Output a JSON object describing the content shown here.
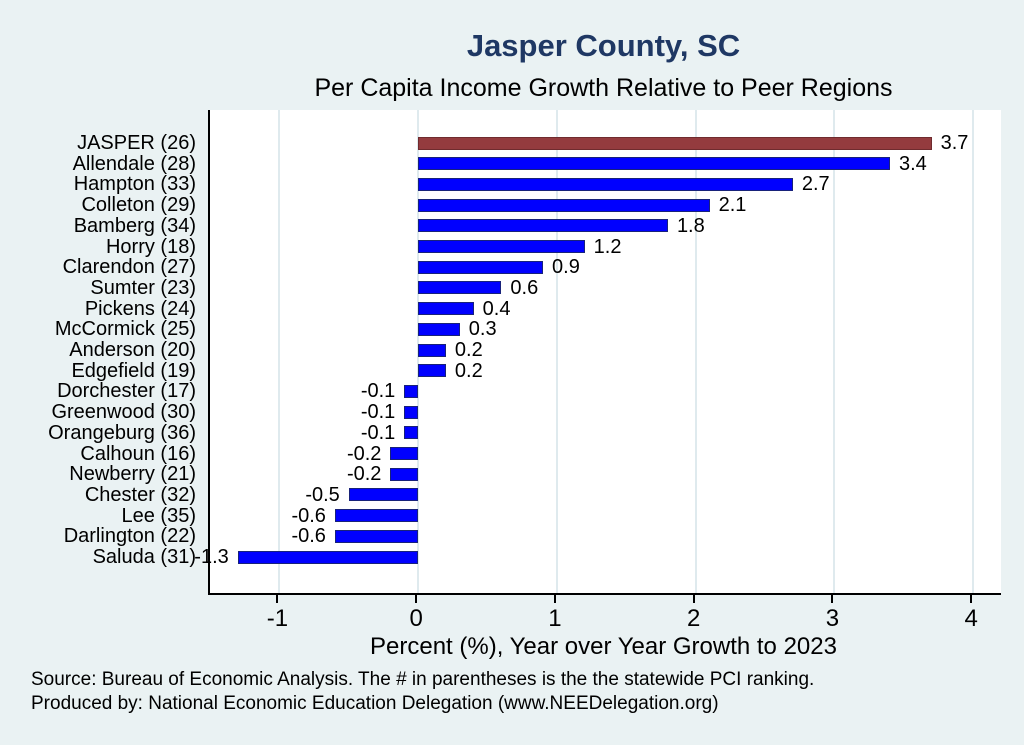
{
  "chart_data": {
    "type": "bar",
    "orientation": "horizontal",
    "title": "Jasper County, SC",
    "subtitle": "Per Capita Income Growth Relative to Peer Regions",
    "categories": [
      "JASPER (26)",
      "Allendale (28)",
      "Hampton (33)",
      "Colleton (29)",
      "Bamberg (34)",
      "Horry (18)",
      "Clarendon (27)",
      "Sumter (23)",
      "Pickens (24)",
      "McCormick (25)",
      "Anderson (20)",
      "Edgefield (19)",
      "Dorchester (17)",
      "Greenwood (30)",
      "Orangeburg (36)",
      "Calhoun (16)",
      "Newberry (21)",
      "Chester (32)",
      "Lee (35)",
      "Darlington (22)",
      "Saluda (31)"
    ],
    "values": [
      3.7,
      3.4,
      2.7,
      2.1,
      1.8,
      1.2,
      0.9,
      0.6,
      0.4,
      0.3,
      0.2,
      0.2,
      -0.1,
      -0.1,
      -0.1,
      -0.2,
      -0.2,
      -0.5,
      -0.6,
      -0.6,
      -1.3
    ],
    "highlight_index": 0,
    "xlabel": "Percent (%), Year over Year Growth to 2023",
    "xticks": [
      "-1",
      "0",
      "1",
      "2",
      "3",
      "4"
    ],
    "xtick_values": [
      -1,
      0,
      1,
      2,
      3,
      4
    ],
    "xlim": [
      -1.5,
      4.2
    ],
    "grid": true,
    "legend_position": "none",
    "colors": {
      "bar": "#0000ff",
      "bar_edge": "#18227a",
      "highlight": "#943b3e",
      "highlight_edge": "#6f2b2e",
      "grid": "#dfeaee",
      "axis": "#000000",
      "plot_bg": "#ffffff",
      "page_bg": "#eaf2f3",
      "title": "#1f3864"
    }
  },
  "footer": {
    "source_line1": "Source: Bureau of Economic Analysis. The # in parentheses is the the statewide PCI ranking.",
    "source_line2": "Produced by: National Economic Education Delegation (www.NEEDelegation.org)"
  }
}
